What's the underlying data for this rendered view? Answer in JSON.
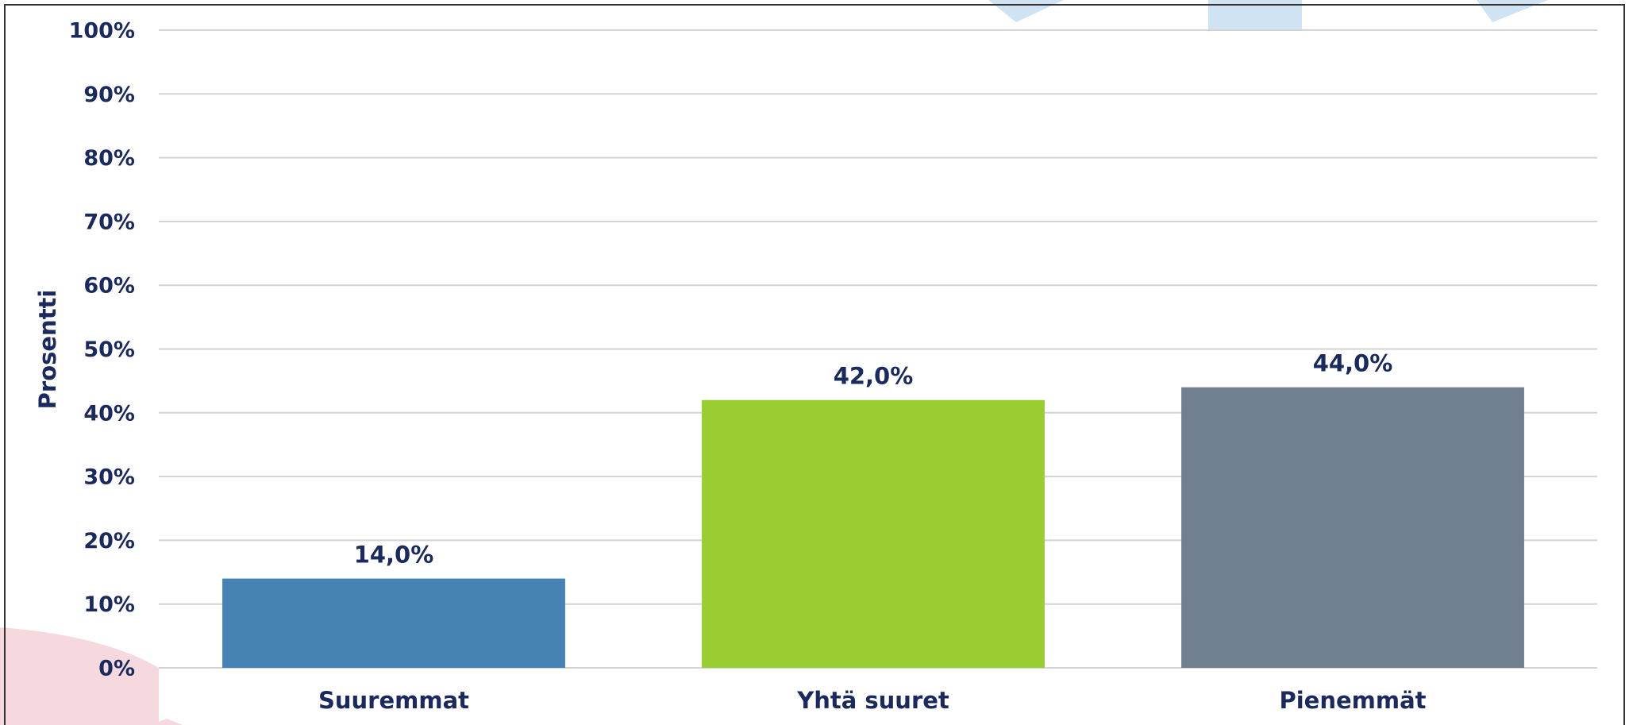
{
  "chart_data": {
    "type": "bar",
    "y_label": "Prosentti",
    "categories": [
      "Suuremmat",
      "Yhtä suuret",
      "Pienemmät"
    ],
    "values": [
      14.0,
      42.0,
      44.0
    ],
    "value_labels": [
      "14,0%",
      "42,0%",
      "44,0%"
    ],
    "colors": [
      "#4682b4",
      "#9acd32",
      "#708090"
    ],
    "ylim": [
      0,
      100
    ],
    "yticks": [
      {
        "value": 0,
        "label": "0%"
      },
      {
        "value": 10,
        "label": "10%"
      },
      {
        "value": 20,
        "label": "20%"
      },
      {
        "value": 30,
        "label": "30%"
      },
      {
        "value": 40,
        "label": "40%"
      },
      {
        "value": 50,
        "label": "50%"
      },
      {
        "value": 60,
        "label": "60%"
      },
      {
        "value": 70,
        "label": "70%"
      },
      {
        "value": 80,
        "label": "80%"
      },
      {
        "value": 90,
        "label": "90%"
      },
      {
        "value": 100,
        "label": "100%"
      }
    ],
    "grid": true
  }
}
